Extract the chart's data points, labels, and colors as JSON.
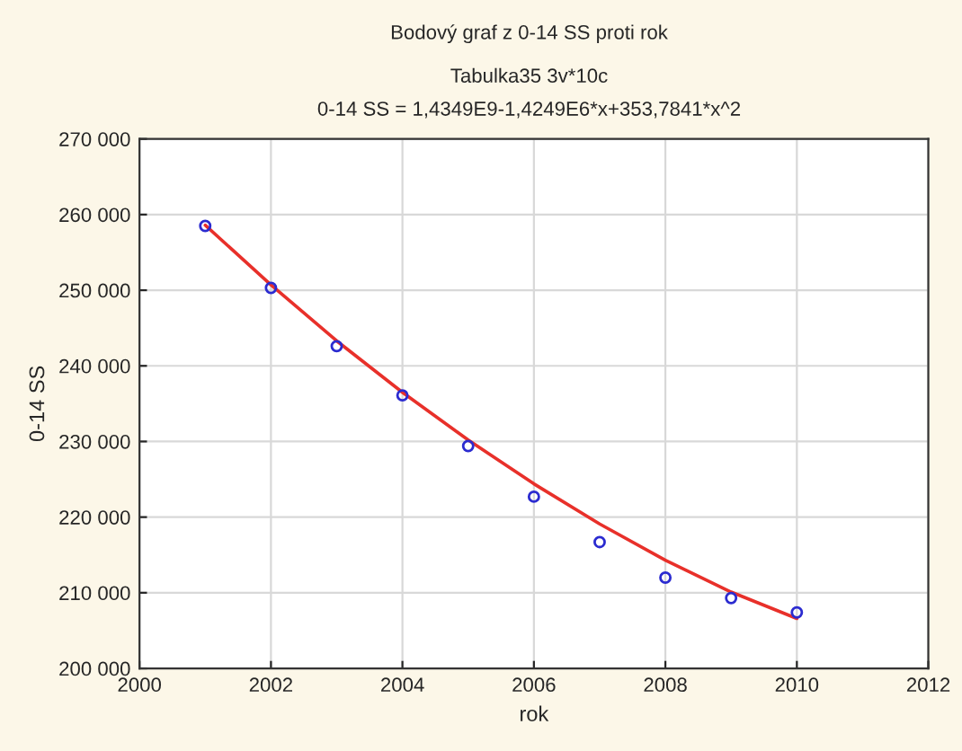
{
  "chart_data": {
    "type": "scatter",
    "title": "Bodový graf z 0-14 SS proti rok",
    "subtitle": "Tabulka35 3v*10c\n0-14 SS = 1,4349E9-1,4249E6*x+353,7841*x^2",
    "xlabel": "rok",
    "ylabel": "0-14 SS",
    "x": [
      2001,
      2002,
      2003,
      2004,
      2005,
      2006,
      2007,
      2008,
      2009,
      2010
    ],
    "series": [
      {
        "color": "#2b2bd0",
        "marker": "circle",
        "values": [
          258500,
          250300,
          242600,
          236100,
          229400,
          222700,
          216700,
          212000,
          209300,
          207400
        ]
      },
      {
        "type": "line",
        "color": "#e8302a",
        "marker": "none",
        "line_style": "solid",
        "x": [
          2001,
          2002,
          2003,
          2004,
          2005,
          2006,
          2007,
          2008,
          2009,
          2010
        ],
        "values": [
          258600,
          250700,
          243300,
          236500,
          230200,
          224400,
          219100,
          214300,
          210100,
          206600
        ]
      }
    ],
    "xlim": [
      2000,
      2012
    ],
    "xticks": [
      2000,
      2002,
      2004,
      2006,
      2008,
      2010,
      2012
    ],
    "ylim": [
      200000,
      270000
    ],
    "yticks": [
      {
        "value": 200000,
        "label": "200 000"
      },
      {
        "value": 210000,
        "label": "210 000"
      },
      {
        "value": 220000,
        "label": "220 000"
      },
      {
        "value": 230000,
        "label": "230 000"
      },
      {
        "value": 240000,
        "label": "240 000"
      },
      {
        "value": 250000,
        "label": "250 000"
      },
      {
        "value": 260000,
        "label": "260 000"
      },
      {
        "value": 270000,
        "label": "270 000"
      }
    ],
    "grid": true,
    "legend": false
  }
}
